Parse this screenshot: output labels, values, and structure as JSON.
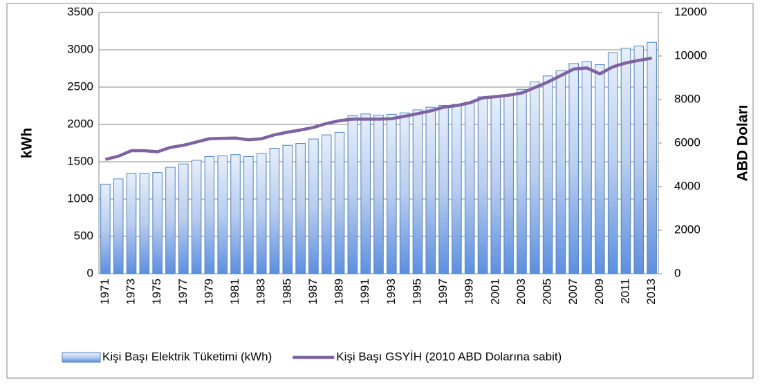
{
  "chart_data": {
    "type": "bar-line",
    "ylabel": "kWh",
    "y2label": "ABD Doları",
    "categories": [
      "1971",
      null,
      "1973",
      null,
      "1975",
      null,
      "1977",
      null,
      "1979",
      null,
      "1981",
      null,
      "1983",
      null,
      "1985",
      null,
      "1987",
      null,
      "1989",
      null,
      "1991",
      null,
      "1993",
      null,
      "1995",
      null,
      "1997",
      null,
      "1999",
      null,
      "2001",
      null,
      "2003",
      null,
      "2005",
      null,
      "2007",
      null,
      "2009",
      null,
      "2011",
      null,
      "2013"
    ],
    "series": [
      {
        "name": "Kişi Başı Elektrik Tüketimi (kWh)",
        "type": "bar",
        "color": "#4f81bd",
        "values": [
          1200,
          1270,
          1345,
          1345,
          1355,
          1425,
          1470,
          1520,
          1570,
          1580,
          1595,
          1570,
          1610,
          1680,
          1720,
          1745,
          1805,
          1860,
          1895,
          2115,
          2140,
          2125,
          2135,
          2155,
          2195,
          2230,
          2255,
          2270,
          2300,
          2370,
          2370,
          2400,
          2470,
          2570,
          2650,
          2720,
          2815,
          2840,
          2800,
          2960,
          3020,
          3050,
          3100
        ]
      },
      {
        "name": "Kişi Başı GSYİH (2010 ABD Dolarına sabit)",
        "type": "line",
        "axis": "y2",
        "color": "#7f62a1",
        "values": [
          5250,
          5400,
          5650,
          5650,
          5600,
          5800,
          5900,
          6050,
          6200,
          6220,
          6230,
          6150,
          6200,
          6380,
          6500,
          6600,
          6720,
          6900,
          7030,
          7100,
          7100,
          7100,
          7120,
          7230,
          7350,
          7480,
          7650,
          7720,
          7850,
          8080,
          8130,
          8200,
          8300,
          8550,
          8800,
          9100,
          9400,
          9450,
          9180,
          9500,
          9680,
          9800,
          9900
        ]
      }
    ],
    "ylim": [
      0,
      3500
    ],
    "yticks": [
      0,
      500,
      1000,
      1500,
      2000,
      2500,
      3000,
      3500
    ],
    "y2lim": [
      0,
      12000
    ],
    "y2ticks": [
      0,
      2000,
      4000,
      6000,
      8000,
      10000,
      12000
    ],
    "grid": true,
    "legend": "bottom"
  }
}
